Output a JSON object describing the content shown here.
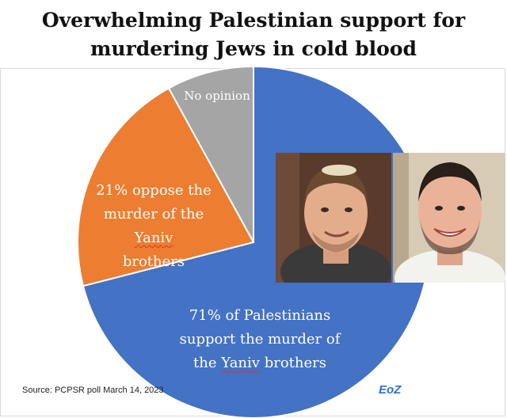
{
  "title_line1": "Overwhelming Palestinian support for",
  "title_line2": "murdering Jews in cold blood",
  "chart_data": {
    "type": "pie",
    "slices": [
      {
        "label": "71% of Palestinians support the murder of the Yaniv brothers",
        "value": 71,
        "color": "#4472c4"
      },
      {
        "label": "21% oppose the murder of the Yaniv brothers",
        "value": 21,
        "color": "#ed7d31"
      },
      {
        "label": "No opinion",
        "value": 8,
        "color": "#a5a5a5"
      }
    ]
  },
  "labels": {
    "no_opinion": "No opinion",
    "oppose_line1": "21% oppose the",
    "oppose_line2_a": "murder of the ",
    "oppose_line2_b": "Yaniv",
    "oppose_line3": "brothers",
    "support_line1": "71% of Palestinians",
    "support_line2": "support the murder of",
    "support_line3_a": "the ",
    "support_line3_b": "Yaniv",
    "support_line3_c": " brothers"
  },
  "source": "Source: PCPSR poll March 14, 2023",
  "logo": "EoZ",
  "photos": [
    "photo of young man in kippah",
    "photo of smiling young man"
  ]
}
